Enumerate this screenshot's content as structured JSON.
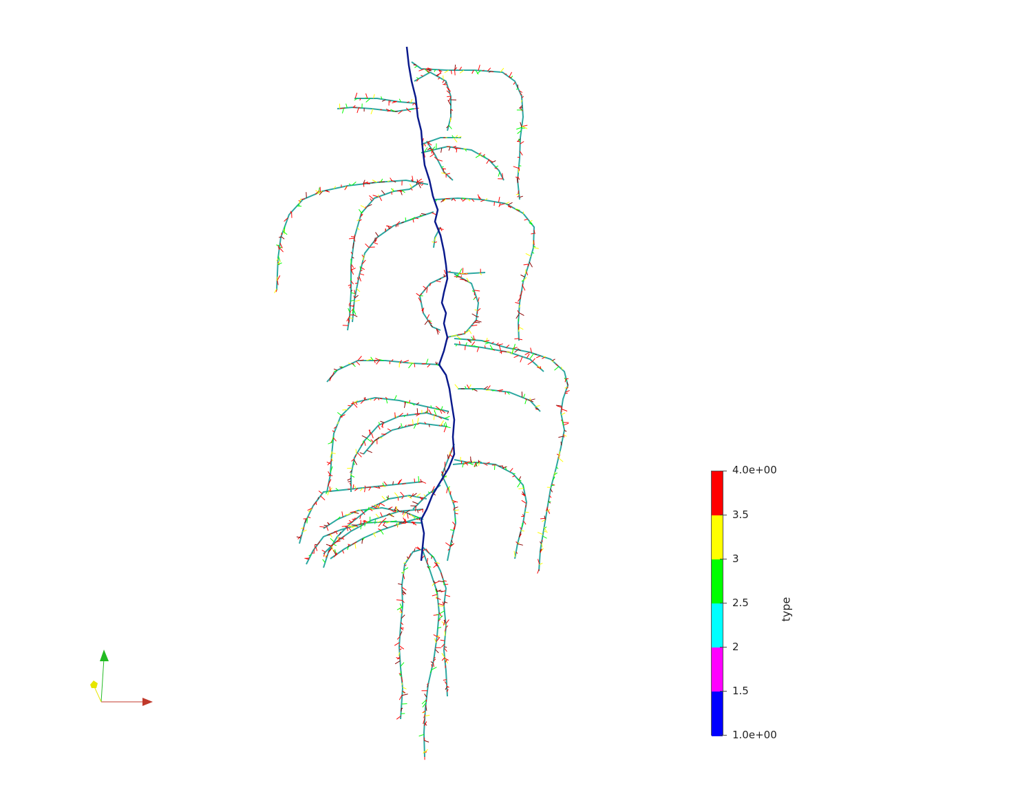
{
  "scene": {
    "colors": {
      "type1": "#0000ff",
      "type2": "#00ffff",
      "type3": "#00ff00",
      "type4": "#ff0000",
      "type35": "#ffff00",
      "type15": "#ff00ff",
      "taproot": "#0a1a8c",
      "lateral": "#2aa7a0"
    }
  },
  "colorbar": {
    "title": "type",
    "labels": [
      "4.0e+00",
      "3.5",
      "3",
      "2.5",
      "2",
      "1.5",
      "1.0e+00"
    ],
    "segment_colors": [
      "#ff0000",
      "#ffff00",
      "#00ff00",
      "#00ffff",
      "#ff00ff",
      "#0000ff"
    ]
  },
  "orientation_axes": {
    "x_color": "#c0392b",
    "y_color": "#22bb22",
    "z_color": "#e6e600"
  }
}
